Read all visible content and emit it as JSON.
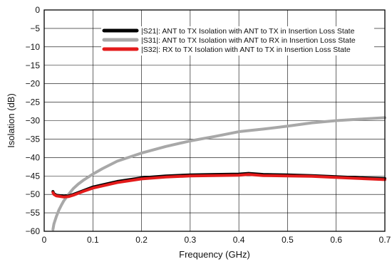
{
  "chart_data": {
    "type": "line",
    "xlabel": "Frequency (GHz)",
    "ylabel": "Isolation (dB)",
    "xlim": [
      0,
      0.7
    ],
    "ylim": [
      -60,
      0
    ],
    "x_ticks": [
      0,
      0.1,
      0.2,
      0.3,
      0.4,
      0.5,
      0.6,
      0.7
    ],
    "x_tick_labels": [
      "0",
      "0.1",
      "0.2",
      "0.3",
      "0.4",
      "0.5",
      "0.6",
      "0.7"
    ],
    "y_ticks": [
      0,
      -5,
      -10,
      -15,
      -20,
      -25,
      -30,
      -35,
      -40,
      -45,
      -50,
      -55,
      -60
    ],
    "y_tick_labels": [
      "0",
      "−5",
      "−10",
      "−15",
      "−20",
      "−25",
      "−30",
      "−35",
      "−40",
      "−45",
      "−50",
      "−55",
      "−60"
    ],
    "grid": true,
    "legend_position": "top-right",
    "series": [
      {
        "name": "|S21|: ANT to TX Isolation with ANT to TX in Insertion Loss State",
        "color": "#000000",
        "x": [
          0.018,
          0.02,
          0.025,
          0.03,
          0.04,
          0.05,
          0.06,
          0.08,
          0.1,
          0.15,
          0.2,
          0.25,
          0.3,
          0.35,
          0.4,
          0.42,
          0.45,
          0.5,
          0.55,
          0.6,
          0.65,
          0.7
        ],
        "y": [
          -49.2,
          -49.8,
          -50.2,
          -50.3,
          -50.5,
          -50.4,
          -50.0,
          -49.0,
          -48.0,
          -46.5,
          -45.5,
          -45.0,
          -44.7,
          -44.6,
          -44.5,
          -44.3,
          -44.6,
          -44.7,
          -44.9,
          -45.2,
          -45.5,
          -45.7
        ]
      },
      {
        "name": "|S31|: ANT to TX Isolation with ANT to RX in Insertion Loss State",
        "color": "#a8a8a8",
        "x": [
          0.018,
          0.02,
          0.025,
          0.03,
          0.035,
          0.04,
          0.05,
          0.06,
          0.07,
          0.08,
          0.1,
          0.12,
          0.15,
          0.2,
          0.25,
          0.3,
          0.35,
          0.4,
          0.45,
          0.5,
          0.55,
          0.6,
          0.65,
          0.7
        ],
        "y": [
          -59.5,
          -58.0,
          -56.0,
          -54.3,
          -53.0,
          -51.8,
          -50.0,
          -48.4,
          -47.2,
          -46.2,
          -44.5,
          -43.0,
          -41.0,
          -38.8,
          -37.0,
          -35.5,
          -34.3,
          -33.0,
          -32.3,
          -31.5,
          -30.6,
          -30.0,
          -29.6,
          -29.2
        ]
      },
      {
        "name": "|S32|: RX to TX Isolation with ANT to TX in Insertion Loss State",
        "color": "#e41b1b",
        "x": [
          0.018,
          0.02,
          0.025,
          0.03,
          0.04,
          0.05,
          0.06,
          0.08,
          0.1,
          0.15,
          0.2,
          0.25,
          0.3,
          0.35,
          0.4,
          0.42,
          0.45,
          0.5,
          0.55,
          0.6,
          0.65,
          0.7
        ],
        "y": [
          -49.5,
          -50.0,
          -50.4,
          -50.5,
          -50.7,
          -50.6,
          -50.2,
          -49.2,
          -48.3,
          -46.8,
          -45.8,
          -45.3,
          -45.0,
          -44.9,
          -44.8,
          -44.6,
          -44.9,
          -45.0,
          -45.1,
          -45.4,
          -45.7,
          -46.0
        ]
      }
    ]
  }
}
